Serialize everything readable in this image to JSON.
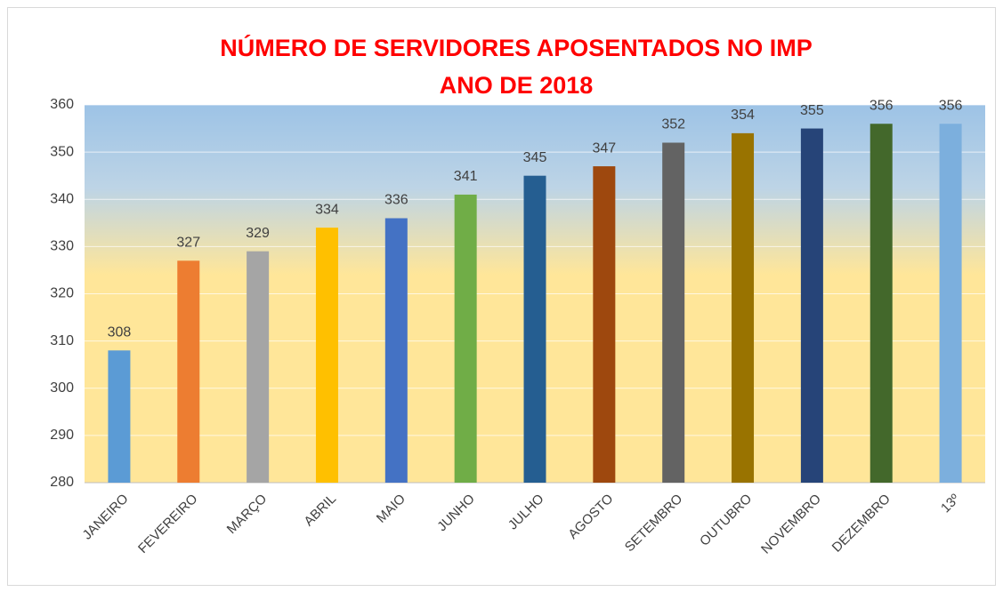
{
  "chart_data": {
    "type": "bar",
    "title": "NÚMERO DE SERVIDORES APOSENTADOS NO IMP",
    "subtitle": "ANO DE 2018",
    "categories": [
      "JANEIRO",
      "FEVEREIRO",
      "MARÇO",
      "ABRIL",
      "MAIO",
      "JUNHO",
      "JULHO",
      "AGOSTO",
      "SETEMBRO",
      "OUTUBRO",
      "NOVEMBRO",
      "DEZEMBRO",
      "13º"
    ],
    "values": [
      308,
      327,
      329,
      334,
      336,
      341,
      345,
      347,
      352,
      354,
      355,
      356,
      356
    ],
    "colors": [
      "#5b9bd5",
      "#ed7d31",
      "#a5a5a5",
      "#ffc000",
      "#4472c4",
      "#70ad47",
      "#255e91",
      "#9e480e",
      "#636363",
      "#997300",
      "#264478",
      "#43682b",
      "#7cafdd"
    ],
    "ylim": [
      280,
      360
    ],
    "yticks": [
      280,
      290,
      300,
      310,
      320,
      330,
      340,
      350,
      360
    ],
    "grid": true
  }
}
